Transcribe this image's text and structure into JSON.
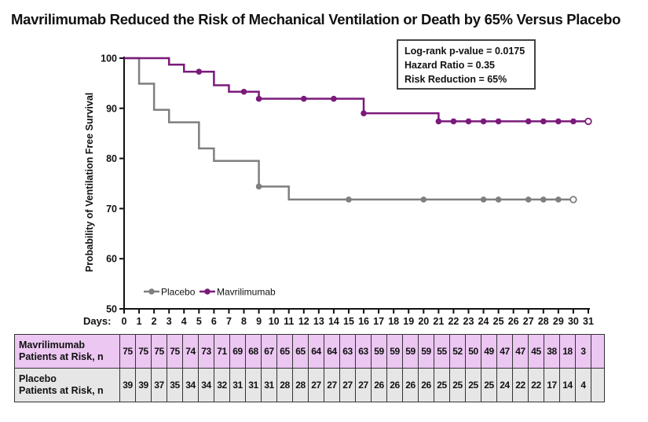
{
  "title": "Mavrilimumab Reduced the Risk of Mechanical Ventilation or Death by 65% Versus Placebo",
  "stats_box": {
    "line1": "Log-rank p-value = 0.0175",
    "line2": "Hazard Ratio = 0.35",
    "line3": "Risk Reduction = 65%"
  },
  "colors": {
    "mavrilimumab": "#7b1a7b",
    "placebo": "#7f7f7f",
    "mav_table_bg": "#ecc7f2",
    "placebo_table_bg": "#e6e6e6"
  },
  "risk_table": {
    "mav_label_line1": "Mavrilimumab",
    "mav_label_line2": "Patients at Risk, n",
    "placebo_label_line1": "Placebo",
    "placebo_label_line2": "Patients at Risk, n",
    "mav_counts": [
      75,
      75,
      75,
      75,
      74,
      73,
      71,
      69,
      68,
      67,
      65,
      65,
      64,
      64,
      63,
      63,
      59,
      59,
      59,
      59,
      55,
      52,
      50,
      49,
      47,
      47,
      45,
      38,
      18,
      3
    ],
    "placebo_counts": [
      39,
      39,
      37,
      35,
      34,
      34,
      32,
      31,
      31,
      31,
      28,
      28,
      27,
      27,
      27,
      27,
      26,
      26,
      26,
      26,
      25,
      25,
      25,
      25,
      24,
      22,
      22,
      17,
      14,
      4
    ]
  },
  "chart_data": {
    "type": "line",
    "title": "Mavrilimumab Reduced the Risk of Mechanical Ventilation or Death by 65% Versus Placebo",
    "ylabel": "Probability of Ventilation Free Survival",
    "xlabel": "Days:",
    "ylim": [
      50,
      100
    ],
    "xlim": [
      0,
      31
    ],
    "yticks": [
      50,
      60,
      70,
      80,
      90,
      100
    ],
    "xticks": [
      0,
      1,
      2,
      3,
      4,
      5,
      6,
      7,
      8,
      9,
      10,
      11,
      12,
      13,
      14,
      15,
      16,
      17,
      18,
      19,
      20,
      21,
      22,
      23,
      24,
      25,
      26,
      27,
      28,
      29,
      30,
      31
    ],
    "step": true,
    "legend": "bottom-left",
    "series": [
      {
        "name": "Placebo",
        "color": "#7f7f7f",
        "steps": [
          [
            0,
            100
          ],
          [
            1,
            94.9
          ],
          [
            2,
            89.7
          ],
          [
            3,
            87.2
          ],
          [
            5,
            82.0
          ],
          [
            6,
            79.5
          ],
          [
            9,
            74.4
          ],
          [
            11,
            71.8
          ],
          [
            30,
            71.8
          ]
        ],
        "censored_x": [
          9,
          15,
          20,
          24,
          25,
          27,
          28,
          29,
          30
        ],
        "open_marker_x": 30
      },
      {
        "name": "Mavrilimumab",
        "color": "#7b1a7b",
        "steps": [
          [
            0,
            100
          ],
          [
            3,
            98.7
          ],
          [
            4,
            97.3
          ],
          [
            6,
            94.6
          ],
          [
            7,
            93.3
          ],
          [
            9,
            91.9
          ],
          [
            16,
            89.0
          ],
          [
            21,
            87.4
          ],
          [
            31,
            87.4
          ]
        ],
        "censored_x": [
          5,
          8,
          9,
          12,
          14,
          16,
          21,
          22,
          23,
          24,
          25,
          27,
          28,
          29,
          30
        ],
        "open_marker_x": 31
      }
    ]
  }
}
